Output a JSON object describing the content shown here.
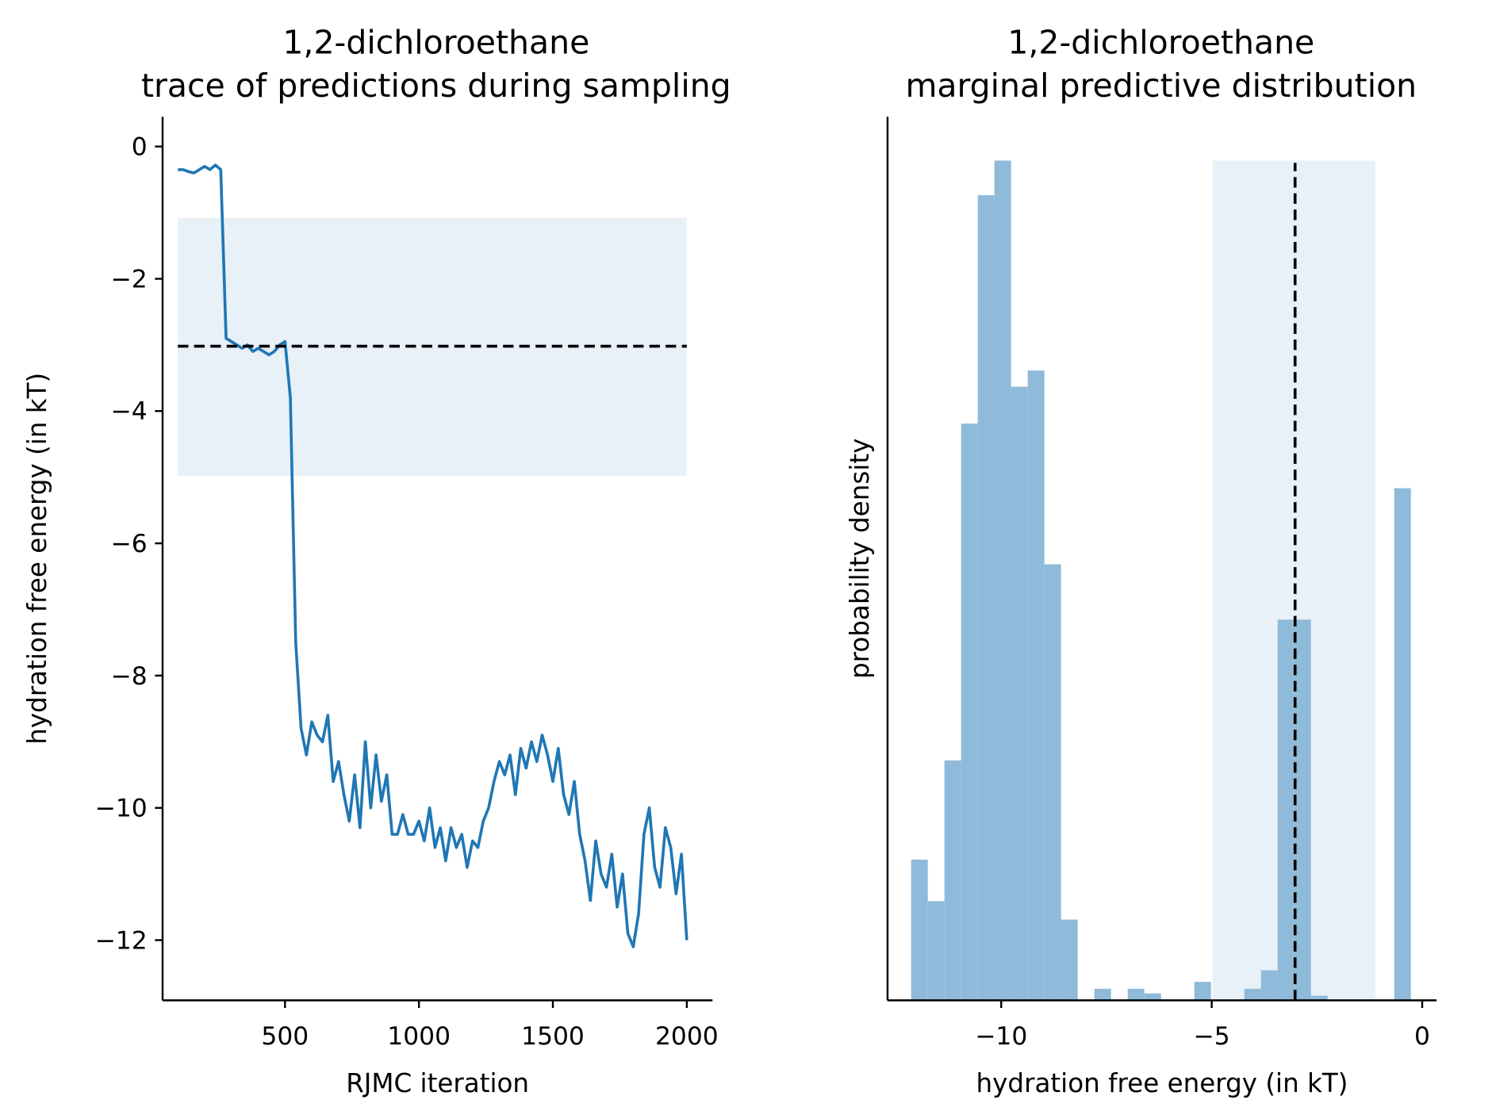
{
  "chart_data": [
    {
      "type": "line",
      "title": [
        "1,2-dichloroethane",
        "trace of predictions during sampling"
      ],
      "xlabel": "RJMC iteration",
      "ylabel": "hydration free energy (in kT)",
      "color": "#1f77b4",
      "x": [
        100,
        120,
        140,
        160,
        180,
        200,
        220,
        240,
        260,
        280,
        300,
        320,
        340,
        360,
        380,
        400,
        420,
        440,
        460,
        480,
        500,
        520,
        540,
        560,
        580,
        600,
        620,
        640,
        660,
        680,
        700,
        720,
        740,
        760,
        780,
        800,
        820,
        840,
        860,
        880,
        900,
        920,
        940,
        960,
        980,
        1000,
        1020,
        1040,
        1060,
        1080,
        1100,
        1120,
        1140,
        1160,
        1180,
        1200,
        1220,
        1240,
        1260,
        1280,
        1300,
        1320,
        1340,
        1360,
        1380,
        1400,
        1420,
        1440,
        1460,
        1480,
        1500,
        1520,
        1540,
        1560,
        1580,
        1600,
        1620,
        1640,
        1660,
        1680,
        1700,
        1720,
        1740,
        1760,
        1780,
        1800,
        1820,
        1840,
        1860,
        1880,
        1900,
        1920,
        1940,
        1960,
        1980,
        2000
      ],
      "values": [
        -0.35,
        -0.35,
        -0.38,
        -0.4,
        -0.35,
        -0.3,
        -0.35,
        -0.28,
        -0.35,
        -2.9,
        -2.95,
        -3.0,
        -3.05,
        -3.0,
        -3.1,
        -3.05,
        -3.1,
        -3.15,
        -3.1,
        -3.0,
        -2.95,
        -3.8,
        -7.5,
        -8.8,
        -9.2,
        -8.7,
        -8.9,
        -9.0,
        -8.6,
        -9.6,
        -9.3,
        -9.8,
        -10.2,
        -9.5,
        -10.3,
        -9.0,
        -10.0,
        -9.2,
        -9.9,
        -9.5,
        -10.4,
        -10.4,
        -10.1,
        -10.4,
        -10.4,
        -10.2,
        -10.5,
        -10.0,
        -10.6,
        -10.3,
        -10.8,
        -10.3,
        -10.6,
        -10.4,
        -10.9,
        -10.5,
        -10.6,
        -10.2,
        -10.0,
        -9.6,
        -9.3,
        -9.5,
        -9.2,
        -9.8,
        -9.1,
        -9.4,
        -9.0,
        -9.3,
        -8.9,
        -9.2,
        -9.6,
        -9.1,
        -9.8,
        -10.1,
        -9.6,
        -10.4,
        -10.8,
        -11.4,
        -10.5,
        -11.0,
        -11.2,
        -10.7,
        -11.5,
        -11.0,
        -11.9,
        -12.1,
        -11.6,
        -10.4,
        -10.0,
        -10.9,
        -11.2,
        -10.3,
        -10.6,
        -11.3,
        -10.7,
        -12.0
      ],
      "band": {
        "x": [
          100,
          2000
        ],
        "y": [
          -4.98,
          -1.08
        ],
        "color": "#e8f0f8"
      },
      "reference": {
        "y": -3.02,
        "x": [
          100,
          2000
        ]
      },
      "xlim": [
        43,
        2096
      ],
      "ylim": [
        -12.91,
        0.45
      ],
      "xticks": [
        500,
        1000,
        1500,
        2000
      ],
      "yticks": [
        {
          "value": -12,
          "label": "−12"
        },
        {
          "value": -10,
          "label": "−10"
        },
        {
          "value": -8,
          "label": "−8"
        },
        {
          "value": -6,
          "label": "−6"
        },
        {
          "value": -4,
          "label": "−4"
        },
        {
          "value": -2,
          "label": "−2"
        },
        0
      ]
    },
    {
      "type": "histogram",
      "title": [
        "1,2-dichloroethane",
        "marginal predictive distribution"
      ],
      "xlabel": "hydration free energy (in kT)",
      "ylabel": "probability density",
      "color": "#8fbad9",
      "bins": [
        -12.14,
        -11.744,
        -11.349,
        -10.953,
        -10.557,
        -10.162,
        -9.766,
        -9.37,
        -8.974,
        -8.579,
        -8.183,
        -7.787,
        -7.392,
        -6.996,
        -6.6,
        -6.205,
        -5.809,
        -5.413,
        -5.017,
        -4.622,
        -4.226,
        -3.83,
        -3.435,
        -3.039,
        -2.643,
        -2.248,
        -1.852,
        -1.456,
        -1.06,
        -0.665,
        -0.269
      ],
      "values": [
        0.061,
        0.043,
        0.104,
        0.25,
        0.349,
        0.364,
        0.266,
        0.273,
        0.189,
        0.035,
        0,
        0.005,
        0,
        0.005,
        0.003,
        0,
        0,
        0.008,
        0,
        0,
        0.005,
        0.013,
        0.165,
        0.165,
        0.002,
        0,
        0,
        0,
        0,
        0.222
      ],
      "band": {
        "x": [
          -4.98,
          -1.11
        ],
        "y": [
          0,
          0.364
        ],
        "color": "#e8f0f8"
      },
      "reference": {
        "x": -3.02,
        "y": [
          0,
          0.363
        ]
      },
      "xlim": [
        -12.7,
        0.34
      ],
      "ylim": [
        0,
        0.383
      ],
      "xticks": [
        {
          "value": -10,
          "label": "−10"
        },
        {
          "value": -5,
          "label": "−5"
        },
        0
      ]
    }
  ]
}
